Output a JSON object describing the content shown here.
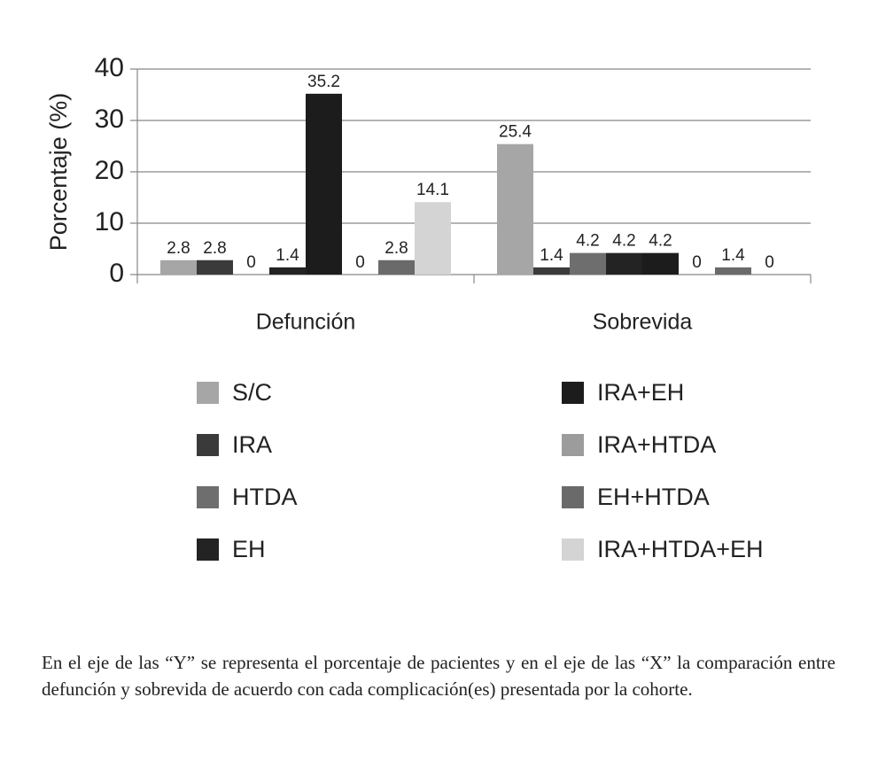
{
  "chart_data": {
    "type": "bar",
    "ylabel": "Porcentaje (%)",
    "categories": [
      "Defunción",
      "Sobrevida"
    ],
    "series": [
      {
        "name": "S/C",
        "color": "#a6a6a6",
        "values": [
          2.8,
          25.4
        ]
      },
      {
        "name": "IRA",
        "color": "#3a3a3a",
        "values": [
          2.8,
          1.4
        ]
      },
      {
        "name": "HTDA",
        "color": "#6e6e6e",
        "values": [
          0,
          4.2
        ]
      },
      {
        "name": "EH",
        "color": "#232323",
        "values": [
          1.4,
          4.2
        ]
      },
      {
        "name": "IRA+EH",
        "color": "#1c1c1c",
        "values": [
          35.2,
          4.2
        ]
      },
      {
        "name": "IRA+HTDA",
        "color": "#9c9c9c",
        "values": [
          0,
          0
        ]
      },
      {
        "name": "EH+HTDA",
        "color": "#6a6a6a",
        "values": [
          2.8,
          1.4
        ]
      },
      {
        "name": "IRA+HTDA+EH",
        "color": "#d4d4d4",
        "values": [
          14.1,
          0
        ]
      }
    ],
    "ylim": [
      0,
      40
    ],
    "yticks": [
      0,
      10,
      20,
      30,
      40
    ],
    "grid": true
  },
  "caption": "En el eje de las “Y” se representa el porcentaje de pacientes y en el eje de las “X” la comparación entre defunción y sobrevida de acuerdo con cada complicación(es) presentada por la cohorte."
}
